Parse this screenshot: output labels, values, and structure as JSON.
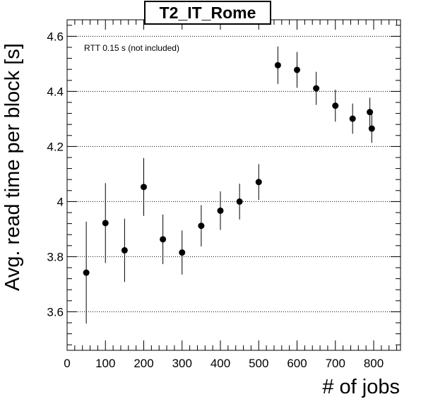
{
  "chart_data": {
    "type": "scatter",
    "title": "T2_IT_Rome",
    "annotation": "RTT 0.15 s (not included)",
    "xlabel": "# of jobs",
    "ylabel": "Avg. read time per block [s]",
    "xlim": [
      0,
      870
    ],
    "ylim": [
      3.46,
      4.66
    ],
    "x_ticks": [
      0,
      100,
      200,
      300,
      400,
      500,
      600,
      700,
      800
    ],
    "y_ticks": [
      3.6,
      3.8,
      4,
      4.2,
      4.4,
      4.6
    ],
    "x_tick_labels": [
      "0",
      "100",
      "200",
      "300",
      "400",
      "500",
      "600",
      "700",
      "800"
    ],
    "y_tick_labels": [
      "3.6",
      "3.8",
      "4",
      "4.2",
      "4.4",
      "4.6"
    ],
    "grid": {
      "horizontal": true,
      "vertical": false
    },
    "points": [
      {
        "x": 50,
        "y": 3.742,
        "err": 0.185
      },
      {
        "x": 100,
        "y": 3.922,
        "err": 0.145
      },
      {
        "x": 150,
        "y": 3.823,
        "err": 0.115
      },
      {
        "x": 200,
        "y": 4.053,
        "err": 0.105
      },
      {
        "x": 250,
        "y": 3.863,
        "err": 0.09
      },
      {
        "x": 300,
        "y": 3.815,
        "err": 0.08
      },
      {
        "x": 350,
        "y": 3.912,
        "err": 0.075
      },
      {
        "x": 400,
        "y": 3.967,
        "err": 0.07
      },
      {
        "x": 450,
        "y": 4.0,
        "err": 0.065
      },
      {
        "x": 500,
        "y": 4.071,
        "err": 0.065
      },
      {
        "x": 550,
        "y": 4.495,
        "err": 0.068
      },
      {
        "x": 600,
        "y": 4.478,
        "err": 0.065
      },
      {
        "x": 650,
        "y": 4.411,
        "err": 0.06
      },
      {
        "x": 700,
        "y": 4.348,
        "err": 0.058
      },
      {
        "x": 745,
        "y": 4.301,
        "err": 0.055
      },
      {
        "x": 790,
        "y": 4.325,
        "err": 0.052
      },
      {
        "x": 795,
        "y": 4.265,
        "err": 0.052
      }
    ]
  }
}
